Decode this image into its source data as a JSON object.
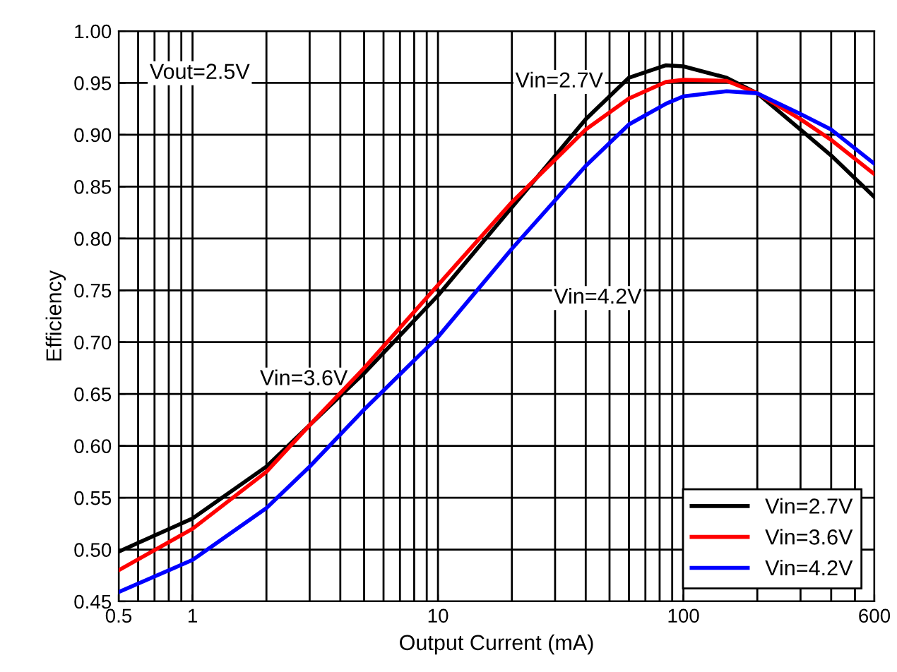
{
  "chart_data": {
    "type": "line",
    "xlabel": "Output Current (mA)",
    "ylabel": "Efficiency",
    "log": "x",
    "xlim": [
      0.5,
      600
    ],
    "xticks": [
      0.5,
      1,
      10,
      100,
      600
    ],
    "ylim": [
      0.45,
      1.0
    ],
    "yticks": [
      {
        "value": 0.45,
        "label": "0.45"
      },
      {
        "value": 0.5,
        "label": "0.50"
      },
      {
        "value": 0.55,
        "label": "0.55"
      },
      {
        "value": 0.6,
        "label": "0.60"
      },
      {
        "value": 0.65,
        "label": "0.65"
      },
      {
        "value": 0.7,
        "label": "0.70"
      },
      {
        "value": 0.75,
        "label": "0.75"
      },
      {
        "value": 0.8,
        "label": "0.80"
      },
      {
        "value": 0.85,
        "label": "0.85"
      },
      {
        "value": 0.9,
        "label": "0.90"
      },
      {
        "value": 0.95,
        "label": "0.95"
      },
      {
        "value": 1.0,
        "label": "1.00"
      }
    ],
    "grid": true,
    "legend": "bottom right",
    "marker": "none",
    "line_style": "solid",
    "x": [
      0.5,
      1,
      2,
      3,
      5,
      10,
      20,
      40,
      60,
      85,
      100,
      150,
      200,
      300,
      400,
      600
    ],
    "series": [
      {
        "name": "Vin=2.7V",
        "color": "#000000",
        "values": [
          0.498,
          0.53,
          0.58,
          0.62,
          0.67,
          0.745,
          0.83,
          0.915,
          0.955,
          0.967,
          0.966,
          0.955,
          0.94,
          0.905,
          0.88,
          0.84
        ]
      },
      {
        "name": "Vin=3.6V",
        "color": "#ff0000",
        "values": [
          0.48,
          0.52,
          0.575,
          0.62,
          0.675,
          0.755,
          0.835,
          0.905,
          0.935,
          0.951,
          0.953,
          0.952,
          0.94,
          0.915,
          0.895,
          0.862
        ]
      },
      {
        "name": "Vin=4.2V",
        "color": "#0000ff",
        "values": [
          0.459,
          0.49,
          0.54,
          0.58,
          0.635,
          0.705,
          0.79,
          0.87,
          0.91,
          0.93,
          0.937,
          0.942,
          0.94,
          0.92,
          0.905,
          0.872
        ]
      }
    ],
    "annotations": [
      "Vout=2.5V",
      "Vin=2.7V",
      "Vin=4.2V",
      "Vin=3.6V"
    ]
  }
}
